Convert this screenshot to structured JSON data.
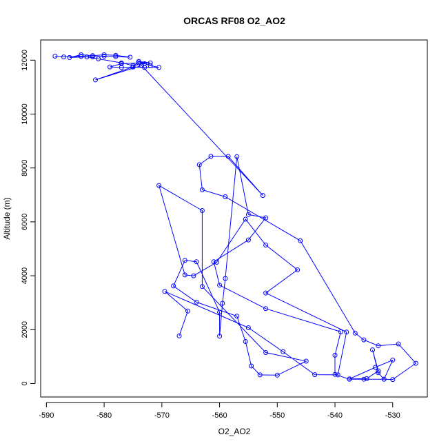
{
  "chart_data": {
    "type": "line",
    "title": "ORCAS RF08 O2_AO2",
    "xlabel": "O2_AO2",
    "ylabel": "Altitude (m)",
    "xlim": [
      -591,
      -524
    ],
    "ylim": [
      -500,
      12750
    ],
    "xticks": [
      -590,
      -580,
      -570,
      -560,
      -550,
      -540,
      -530
    ],
    "yticks": [
      0,
      2000,
      4000,
      6000,
      8000,
      10000,
      12000
    ],
    "grid": false,
    "marker": "open-circle",
    "line_color": "#0000ff",
    "series": [
      {
        "name": "",
        "points": [
          [
            -588.5,
            12150
          ],
          [
            -587,
            12120
          ],
          [
            -584,
            12140
          ],
          [
            -582,
            12120
          ],
          [
            -580,
            12150
          ],
          [
            -578,
            12130
          ],
          [
            -575.5,
            12110
          ],
          [
            -578,
            12180
          ],
          [
            -580,
            12200
          ],
          [
            -582,
            12170
          ],
          [
            -584,
            12200
          ],
          [
            -586,
            12100
          ],
          [
            -583,
            12120
          ],
          [
            -581,
            12050
          ],
          [
            -577,
            11900
          ],
          [
            -575,
            11800
          ],
          [
            -573,
            11870
          ],
          [
            -574,
            11950
          ],
          [
            -572,
            11800
          ],
          [
            -570.5,
            11730
          ],
          [
            -573,
            11730
          ],
          [
            -575,
            11750
          ],
          [
            -577,
            11730
          ],
          [
            -579,
            11750
          ],
          [
            -577,
            11870
          ],
          [
            -574,
            11900
          ],
          [
            -572,
            11900
          ],
          [
            -574,
            11950
          ],
          [
            -575,
            11750
          ],
          [
            -581.5,
            11270
          ],
          [
            -573.5,
            11800
          ],
          [
            -552.5,
            6980
          ],
          [
            -558.5,
            8430
          ],
          [
            -561.5,
            8430
          ],
          [
            -563.5,
            8120
          ],
          [
            -563,
            7190
          ],
          [
            -559,
            6930
          ],
          [
            -546,
            5300
          ],
          [
            -536.5,
            1870
          ],
          [
            -535,
            1620
          ],
          [
            -532.5,
            1400
          ],
          [
            -529,
            1470
          ],
          [
            -526,
            750
          ],
          [
            -530,
            150
          ],
          [
            -531.5,
            160
          ],
          [
            -532.5,
            400
          ],
          [
            -533.5,
            1250
          ],
          [
            -532.5,
            470
          ],
          [
            -534.5,
            180
          ],
          [
            -537.5,
            170
          ],
          [
            -533,
            600
          ],
          [
            -530,
            870
          ],
          [
            -531.5,
            160
          ],
          [
            -535,
            160
          ],
          [
            -537.5,
            160
          ],
          [
            -540,
            340
          ],
          [
            -540,
            1050
          ],
          [
            -539,
            1920
          ],
          [
            -552,
            2780
          ],
          [
            -560,
            3650
          ],
          [
            -561,
            4520
          ],
          [
            -555,
            5330
          ],
          [
            -552,
            6150
          ],
          [
            -555,
            6270
          ],
          [
            -557,
            8420
          ],
          [
            -559,
            3900
          ],
          [
            -559.5,
            2980
          ],
          [
            -560,
            1760
          ],
          [
            -560,
            2650
          ],
          [
            -564,
            4520
          ],
          [
            -566,
            4570
          ],
          [
            -568,
            3620
          ],
          [
            -564,
            3020
          ],
          [
            -557,
            2500
          ],
          [
            -555.5,
            1560
          ],
          [
            -554.5,
            650
          ],
          [
            -553,
            320
          ],
          [
            -550,
            310
          ],
          [
            -545,
            830
          ],
          [
            -552,
            1150
          ],
          [
            -563,
            3600
          ],
          [
            -563,
            6420
          ],
          [
            -570.5,
            7350
          ],
          [
            -566,
            4030
          ],
          [
            -564.5,
            4000
          ],
          [
            -560.5,
            4500
          ],
          [
            -555.5,
            6100
          ],
          [
            -552,
            5140
          ],
          [
            -546.5,
            4220
          ],
          [
            -552,
            3360
          ],
          [
            -538,
            1910
          ],
          [
            -539.5,
            320
          ],
          [
            -543.5,
            330
          ],
          [
            -549,
            1180
          ],
          [
            -555,
            2070
          ],
          [
            -569.5,
            3420
          ],
          [
            -565.5,
            2690
          ],
          [
            -567,
            1770
          ]
        ]
      }
    ]
  }
}
